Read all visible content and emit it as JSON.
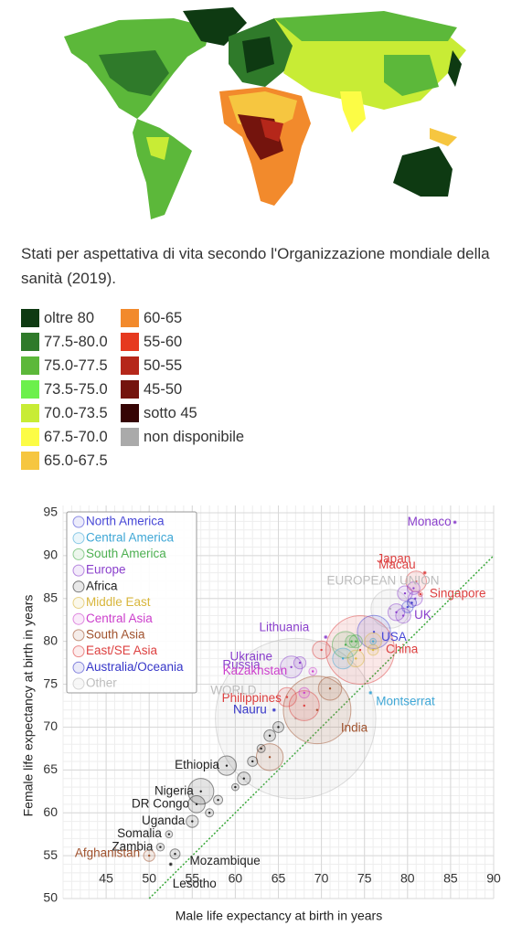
{
  "caption": "Stati per aspettativa di vita secondo l'Organizzazione mondiale della sanità (2019).",
  "map_legend": [
    {
      "label": "oltre 80",
      "color": "#0e3a12"
    },
    {
      "label": "77.5-80.0",
      "color": "#2f7a2a"
    },
    {
      "label": "75.0-77.5",
      "color": "#5cb83a"
    },
    {
      "label": "73.5-75.0",
      "color": "#6cf04c"
    },
    {
      "label": "70.0-73.5",
      "color": "#c8ec35"
    },
    {
      "label": "67.5-70.0",
      "color": "#fcfc45"
    },
    {
      "label": "65.0-67.5",
      "color": "#f6c640"
    },
    {
      "label": "60-65",
      "color": "#f28a2c"
    },
    {
      "label": "55-60",
      "color": "#e6391f"
    },
    {
      "label": "50-55",
      "color": "#b5271a"
    },
    {
      "label": "45-50",
      "color": "#74140d"
    },
    {
      "label": "sotto 45",
      "color": "#360505"
    },
    {
      "label": "non disponibile",
      "color": "#aaaaaa"
    }
  ],
  "chart_data": {
    "type": "bubble",
    "x_label": "Male life expectancy at birth in years",
    "y_label": "Female life expectancy at birth in years",
    "xlim": [
      40,
      90
    ],
    "ylim": [
      50,
      95
    ],
    "xticks": [
      45,
      50,
      55,
      60,
      65,
      70,
      75,
      80,
      85,
      90
    ],
    "yticks": [
      50,
      55,
      60,
      65,
      70,
      75,
      80,
      85,
      90,
      95
    ],
    "grid": true,
    "legend": "upper left",
    "series": [
      {
        "name": "North America",
        "color": "#4747d6",
        "x": [
          76.1,
          80
        ],
        "y": [
          81.1,
          84
        ],
        "sizes": [
          329,
          38
        ],
        "labels": [
          "USA",
          null
        ]
      },
      {
        "name": "Central America",
        "color": "#3fa7d6",
        "x": [
          75.7,
          72.5,
          76
        ],
        "y": [
          74,
          78,
          80
        ],
        "sizes": [
          0.005,
          128,
          11
        ],
        "labels": [
          "Montserrat",
          null,
          null
        ]
      },
      {
        "name": "South America",
        "color": "#4caf50",
        "x": [
          72.8,
          73.5,
          74
        ],
        "y": [
          79.6,
          80,
          80
        ],
        "sizes": [
          211,
          45,
          50
        ],
        "labels": [
          null,
          null,
          null
        ]
      },
      {
        "name": "Europe",
        "color": "#8a3fcc",
        "x": [
          85.5,
          79.5,
          70.5,
          67.5,
          66.5,
          78.7,
          79.7,
          80.9,
          80.7
        ],
        "y": [
          93.9,
          83,
          80.5,
          77.5,
          77,
          83.4,
          85.6,
          85,
          86.2
        ],
        "sizes": [
          0.04,
          67,
          2.8,
          44,
          144,
          83,
          67,
          60,
          47
        ],
        "labels": [
          "Monaco",
          "UK",
          "Lithuania",
          "Ukraine",
          "Russia",
          null,
          null,
          null,
          null
        ]
      },
      {
        "name": "Africa",
        "color": "#222222",
        "x": [
          59,
          56,
          55.5,
          55,
          52.3,
          51.3,
          53,
          52.5,
          61,
          62,
          63,
          58,
          57,
          64,
          60,
          65
        ],
        "y": [
          65.5,
          62.5,
          61,
          59,
          57.5,
          56,
          55.2,
          54,
          64,
          66,
          67.5,
          61.5,
          60,
          69,
          63,
          70
        ],
        "sizes": [
          112,
          200,
          87,
          44,
          15,
          18,
          30,
          2.1,
          50,
          30,
          20,
          25,
          20,
          40,
          15,
          35
        ],
        "labels": [
          "Ethiopia",
          "Nigeria",
          "DR Congo",
          "Uganda",
          "Somalia",
          "Zambia",
          "Mozambique",
          "Lesotho",
          null,
          null,
          null,
          null,
          null,
          null,
          null,
          null
        ]
      },
      {
        "name": "Middle East",
        "color": "#d8b63c",
        "x": [
          74,
          76,
          76
        ],
        "y": [
          78,
          79,
          80
        ],
        "sizes": [
          83,
          34,
          84
        ],
        "labels": [
          null,
          null,
          null
        ]
      },
      {
        "name": "Central Asia",
        "color": "#cc3fcc",
        "x": [
          69,
          68
        ],
        "y": [
          76.5,
          74
        ],
        "sizes": [
          18.5,
          33
        ],
        "labels": [
          "Kazakhstan",
          null
        ]
      },
      {
        "name": "South Asia",
        "color": "#a0522d",
        "x": [
          69.5,
          50,
          64,
          71
        ],
        "y": [
          72,
          55,
          66.5,
          74.5
        ],
        "sizes": [
          1366,
          38,
          216,
          163
        ],
        "labels": [
          "India",
          "Afghanistan",
          null,
          null
        ]
      },
      {
        "name": "East/SE Asia",
        "color": "#dd4040",
        "x": [
          81,
          82,
          81.5,
          74.5,
          66,
          68,
          70
        ],
        "y": [
          87,
          88,
          85.5,
          79,
          73.5,
          72.5,
          79
        ],
        "sizes": [
          126,
          0.6,
          5.8,
          1400,
          108,
          270,
          96
        ],
        "labels": [
          "Japan",
          "Macau",
          "Singapore",
          "China",
          "Philippines",
          null,
          null
        ]
      },
      {
        "name": "Australia/Oceania",
        "color": "#3636c8",
        "x": [
          64.5,
          80.5
        ],
        "y": [
          72,
          84.5
        ],
        "sizes": [
          0.01,
          25
        ],
        "labels": [
          "Nauru",
          null
        ]
      },
      {
        "name": "Other",
        "color": "#bdbdbd",
        "x": [
          78,
          67
        ],
        "y": [
          83.8,
          71
        ],
        "sizes": [
          447,
          7700
        ],
        "labels": [
          "EUROPEAN UNION",
          "WORLD"
        ]
      }
    ]
  }
}
